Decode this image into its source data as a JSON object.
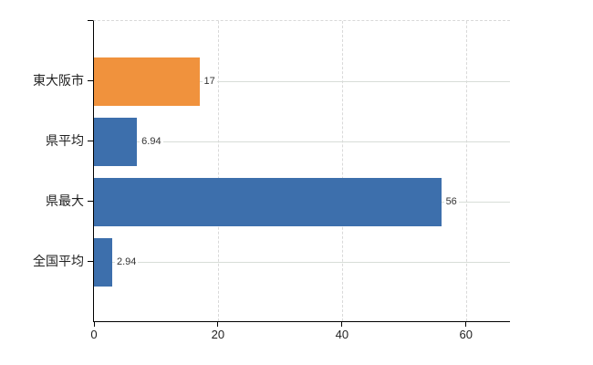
{
  "chart_data": {
    "type": "bar",
    "orientation": "horizontal",
    "title": "",
    "xlabel": "",
    "ylabel": "",
    "categories": [
      "東大阪市",
      "県平均",
      "県最大",
      "全国平均"
    ],
    "values": [
      17,
      6.94,
      56,
      2.94
    ],
    "value_labels": [
      "17",
      "6.94",
      "56",
      "2.94"
    ],
    "bar_colors": [
      "#f0923d",
      "#3d6fac",
      "#3d6fac",
      "#3d6fac"
    ],
    "x_ticks": [
      0,
      20,
      40,
      60
    ],
    "x_tick_labels": [
      "0",
      "20",
      "40",
      "60"
    ],
    "xlim": [
      0,
      67.1
    ],
    "grid": true,
    "legend": false
  },
  "colors": {
    "highlight_bar": "#f0923d",
    "default_bar": "#3d6fac",
    "grid_line": "#d9d9d9",
    "row_grid_line": "#d8ddd8",
    "axis_line": "#000000",
    "text": "#222222",
    "value_text": "#333333",
    "background": "#ffffff"
  }
}
